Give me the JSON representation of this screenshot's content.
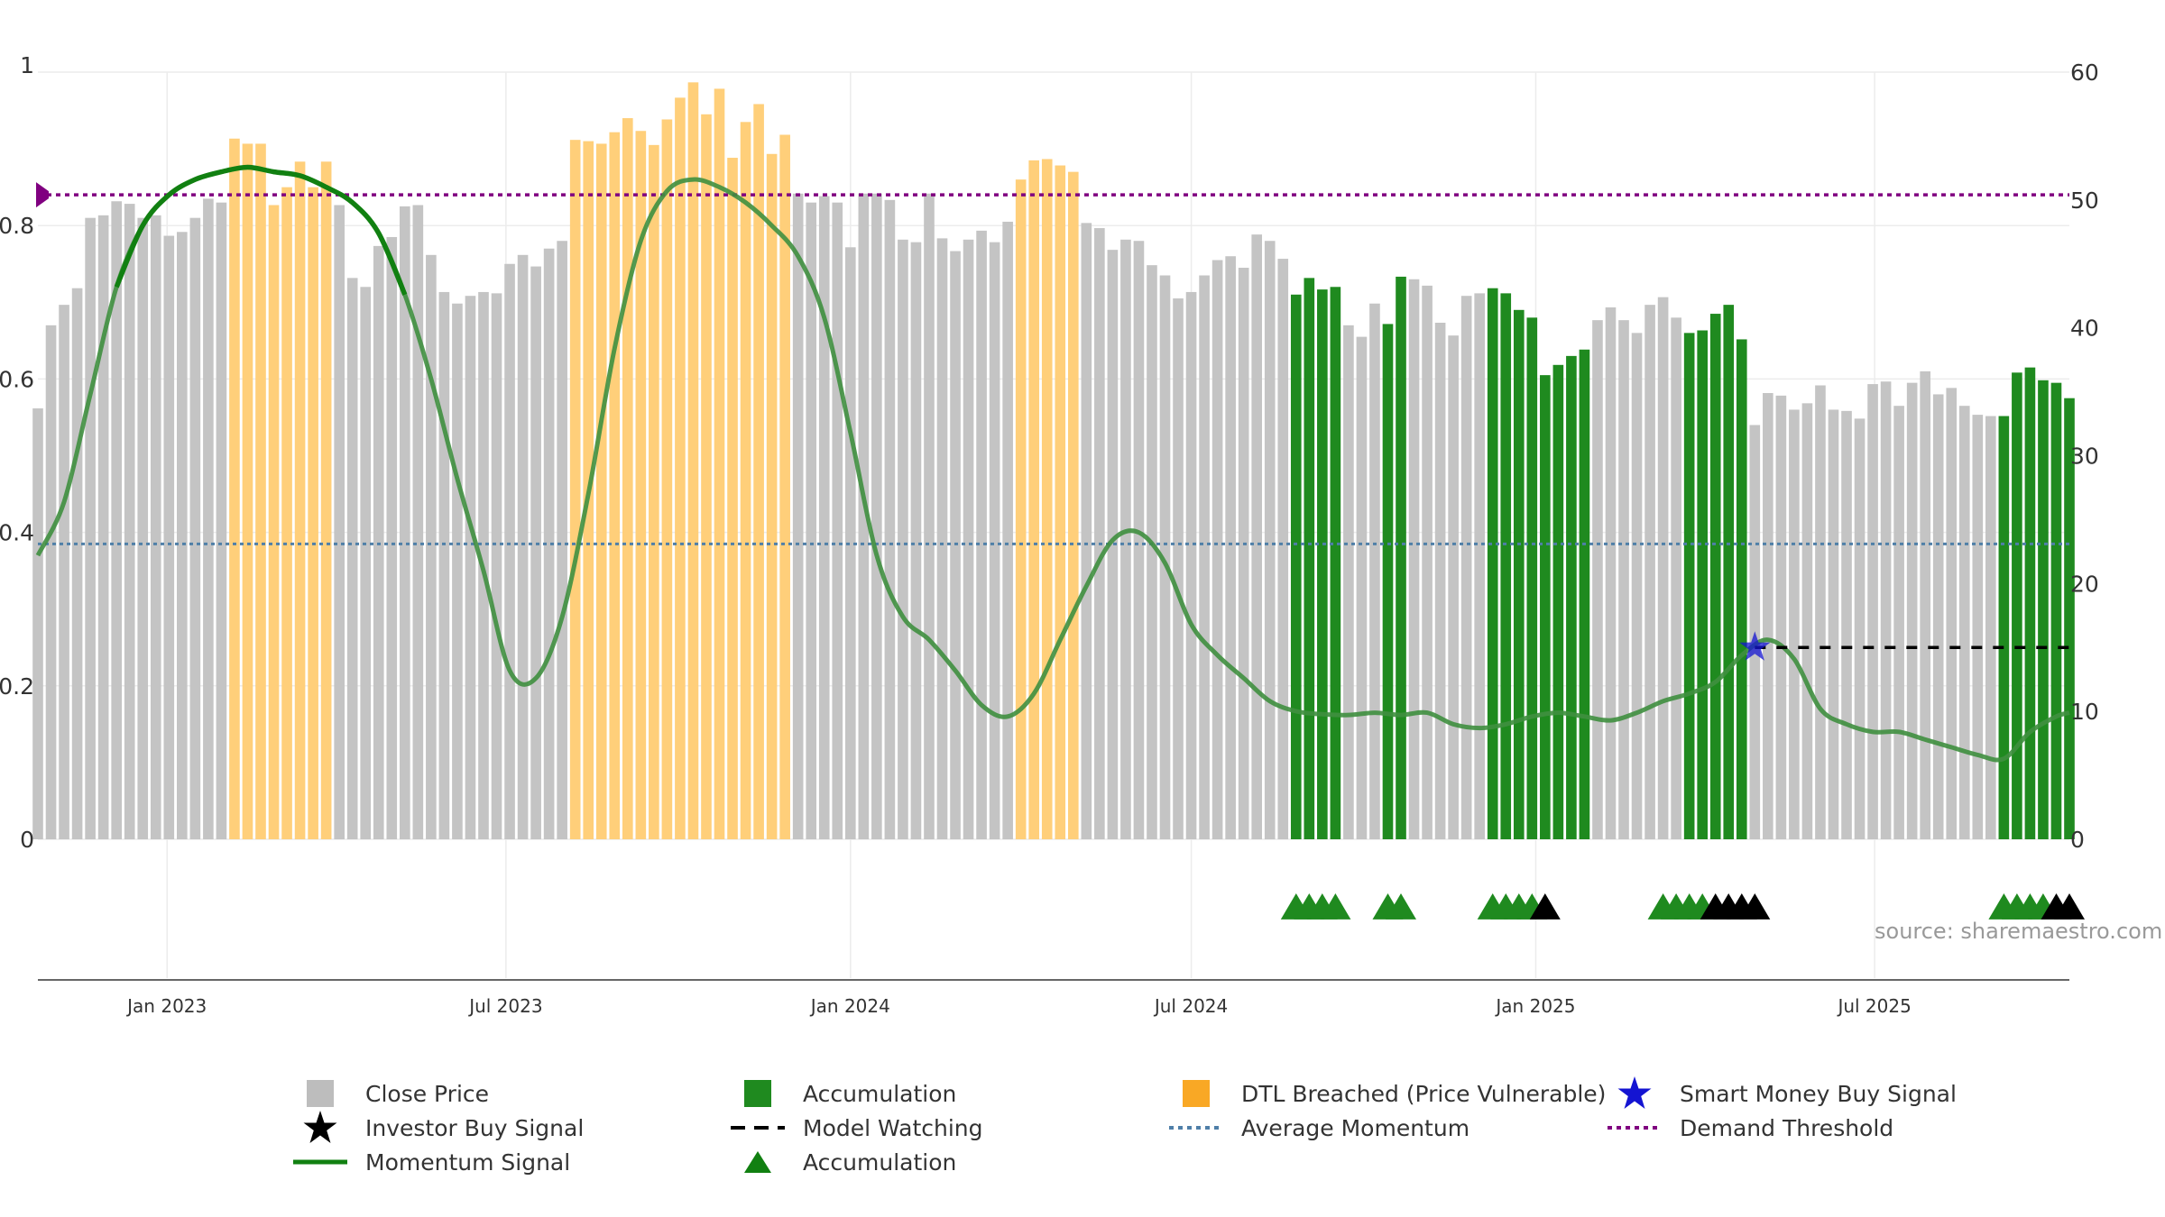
{
  "source_text": "source: sharemaestro.com",
  "colors": {
    "close_price": "#c4c4c4",
    "accumulation": "#1f8a1f",
    "dtl_breached": "#ffcf7a",
    "momentum": "#3f8f3f",
    "momentum_strong": "#118011",
    "average_momentum": "#4f7fa8",
    "demand_threshold": "#800080",
    "smart_money": "#1414d2",
    "investor_buy": "#000000",
    "model_watching": "#000000",
    "grid": "#ececec"
  },
  "legend": [
    {
      "label": "Close Price",
      "icon": "gray-square-icon",
      "color": "#bdbdbd"
    },
    {
      "label": "Accumulation",
      "icon": "green-square-icon",
      "color": "#1f8a1f"
    },
    {
      "label": "DTL Breached (Price Vulnerable)",
      "icon": "orange-square-icon",
      "color": "#f9a825"
    },
    {
      "label": "Smart Money Buy Signal",
      "icon": "blue-star-icon",
      "color": "#1414d2"
    },
    {
      "label": "Investor Buy Signal",
      "icon": "black-star-icon",
      "color": "#000000"
    },
    {
      "label": "Model Watching",
      "icon": "dashed-line-icon",
      "color": "#000000"
    },
    {
      "label": "Average Momentum",
      "icon": "blue-dotted-line-icon",
      "color": "#4f7fa8"
    },
    {
      "label": "Demand Threshold",
      "icon": "purple-dotted-line-icon",
      "color": "#800080"
    },
    {
      "label": "Momentum Signal",
      "icon": "green-line-icon",
      "color": "#118011"
    },
    {
      "label": "Accumulation",
      "icon": "green-triangle-icon",
      "color": "#118011"
    }
  ],
  "chart_data": {
    "type": "bar",
    "x_start": "2022-10-24",
    "x_end": "2025-10-13",
    "x_ticks": [
      {
        "label": "Jan 2023",
        "date": "2023-01-01"
      },
      {
        "label": "Jul 2023",
        "date": "2023-07-01"
      },
      {
        "label": "Jan 2024",
        "date": "2024-01-01"
      },
      {
        "label": "Jul 2024",
        "date": "2024-07-01"
      },
      {
        "label": "Jan 2025",
        "date": "2025-01-01"
      },
      {
        "label": "Jul 2025",
        "date": "2025-07-01"
      }
    ],
    "left_axis": {
      "ylim": [
        0,
        1
      ],
      "ticks": [
        "0",
        "0.2",
        "0.4",
        "0.6",
        "0.8",
        "1"
      ]
    },
    "right_axis": {
      "ylim": [
        0,
        60
      ],
      "ticks": [
        "0",
        "10",
        "20",
        "30",
        "40",
        "50",
        "60"
      ]
    },
    "close_price": [
      {
        "x": "2022-10-24",
        "y": 33.7
      },
      {
        "x": "2022-10-31",
        "y": 40.2
      },
      {
        "x": "2022-11-07",
        "y": 41.8
      },
      {
        "x": "2022-11-14",
        "y": 43.1
      },
      {
        "x": "2022-11-21",
        "y": 48.6
      },
      {
        "x": "2022-11-28",
        "y": 48.8
      },
      {
        "x": "2022-12-05",
        "y": 49.9
      },
      {
        "x": "2022-12-12",
        "y": 49.7
      },
      {
        "x": "2022-12-19",
        "y": 48.6
      },
      {
        "x": "2022-12-26",
        "y": 48.8
      },
      {
        "x": "2023-01-02",
        "y": 47.2
      },
      {
        "x": "2023-01-09",
        "y": 47.5
      },
      {
        "x": "2023-01-16",
        "y": 48.6
      },
      {
        "x": "2023-01-23",
        "y": 50.1
      },
      {
        "x": "2023-01-30",
        "y": 49.8
      },
      {
        "x": "2023-02-06",
        "y": 54.8
      },
      {
        "x": "2023-02-13",
        "y": 54.4
      },
      {
        "x": "2023-02-20",
        "y": 54.4
      },
      {
        "x": "2023-02-27",
        "y": 49.6
      },
      {
        "x": "2023-03-06",
        "y": 51.0
      },
      {
        "x": "2023-03-13",
        "y": 53.0
      },
      {
        "x": "2023-03-20",
        "y": 51.0
      },
      {
        "x": "2023-03-27",
        "y": 53.0
      },
      {
        "x": "2023-04-03",
        "y": 49.6
      },
      {
        "x": "2023-04-10",
        "y": 43.9
      },
      {
        "x": "2023-04-17",
        "y": 43.2
      },
      {
        "x": "2023-04-24",
        "y": 46.4
      },
      {
        "x": "2023-05-01",
        "y": 47.1
      },
      {
        "x": "2023-05-08",
        "y": 49.5
      },
      {
        "x": "2023-05-15",
        "y": 49.6
      },
      {
        "x": "2023-05-22",
        "y": 45.7
      },
      {
        "x": "2023-05-29",
        "y": 42.8
      },
      {
        "x": "2023-06-05",
        "y": 41.9
      },
      {
        "x": "2023-06-12",
        "y": 42.5
      },
      {
        "x": "2023-06-19",
        "y": 42.8
      },
      {
        "x": "2023-06-26",
        "y": 42.7
      },
      {
        "x": "2023-07-03",
        "y": 45.0
      },
      {
        "x": "2023-07-10",
        "y": 45.7
      },
      {
        "x": "2023-07-17",
        "y": 44.8
      },
      {
        "x": "2023-07-24",
        "y": 46.2
      },
      {
        "x": "2023-07-31",
        "y": 46.8
      },
      {
        "x": "2023-08-07",
        "y": 54.7
      },
      {
        "x": "2023-08-14",
        "y": 54.6
      },
      {
        "x": "2023-08-21",
        "y": 54.4
      },
      {
        "x": "2023-08-28",
        "y": 55.3
      },
      {
        "x": "2023-09-04",
        "y": 56.4
      },
      {
        "x": "2023-09-11",
        "y": 55.4
      },
      {
        "x": "2023-09-18",
        "y": 54.3
      },
      {
        "x": "2023-09-25",
        "y": 56.3
      },
      {
        "x": "2023-10-02",
        "y": 58.0
      },
      {
        "x": "2023-10-09",
        "y": 59.2
      },
      {
        "x": "2023-10-16",
        "y": 56.7
      },
      {
        "x": "2023-10-23",
        "y": 58.7
      },
      {
        "x": "2023-10-30",
        "y": 53.3
      },
      {
        "x": "2023-11-06",
        "y": 56.1
      },
      {
        "x": "2023-11-13",
        "y": 57.5
      },
      {
        "x": "2023-11-20",
        "y": 53.6
      },
      {
        "x": "2023-11-27",
        "y": 55.1
      },
      {
        "x": "2023-12-04",
        "y": 50.5
      },
      {
        "x": "2023-12-11",
        "y": 49.8
      },
      {
        "x": "2023-12-18",
        "y": 50.3
      },
      {
        "x": "2023-12-25",
        "y": 49.8
      },
      {
        "x": "2024-01-01",
        "y": 46.3
      },
      {
        "x": "2024-01-08",
        "y": 50.5
      },
      {
        "x": "2024-01-15",
        "y": 50.5
      },
      {
        "x": "2024-01-22",
        "y": 50.0
      },
      {
        "x": "2024-01-29",
        "y": 46.9
      },
      {
        "x": "2024-02-05",
        "y": 46.7
      },
      {
        "x": "2024-02-12",
        "y": 50.5
      },
      {
        "x": "2024-02-19",
        "y": 47.0
      },
      {
        "x": "2024-02-26",
        "y": 46.0
      },
      {
        "x": "2024-03-04",
        "y": 46.9
      },
      {
        "x": "2024-03-11",
        "y": 47.6
      },
      {
        "x": "2024-03-18",
        "y": 46.7
      },
      {
        "x": "2024-03-25",
        "y": 48.3
      },
      {
        "x": "2024-04-01",
        "y": 51.6
      },
      {
        "x": "2024-04-08",
        "y": 53.1
      },
      {
        "x": "2024-04-15",
        "y": 53.2
      },
      {
        "x": "2024-04-22",
        "y": 52.7
      },
      {
        "x": "2024-04-29",
        "y": 52.2
      },
      {
        "x": "2024-05-06",
        "y": 48.2
      },
      {
        "x": "2024-05-13",
        "y": 47.8
      },
      {
        "x": "2024-05-20",
        "y": 46.1
      },
      {
        "x": "2024-05-27",
        "y": 46.9
      },
      {
        "x": "2024-06-03",
        "y": 46.8
      },
      {
        "x": "2024-06-10",
        "y": 44.9
      },
      {
        "x": "2024-06-17",
        "y": 44.1
      },
      {
        "x": "2024-06-24",
        "y": 42.3
      },
      {
        "x": "2024-07-01",
        "y": 42.8
      },
      {
        "x": "2024-07-08",
        "y": 44.1
      },
      {
        "x": "2024-07-15",
        "y": 45.3
      },
      {
        "x": "2024-07-22",
        "y": 45.6
      },
      {
        "x": "2024-07-29",
        "y": 44.7
      },
      {
        "x": "2024-08-05",
        "y": 47.3
      },
      {
        "x": "2024-08-12",
        "y": 46.8
      },
      {
        "x": "2024-08-19",
        "y": 45.4
      },
      {
        "x": "2024-08-26",
        "y": 42.6
      },
      {
        "x": "2024-09-02",
        "y": 43.9
      },
      {
        "x": "2024-09-09",
        "y": 43.0
      },
      {
        "x": "2024-09-16",
        "y": 43.2
      },
      {
        "x": "2024-09-23",
        "y": 40.2
      },
      {
        "x": "2024-09-30",
        "y": 39.3
      },
      {
        "x": "2024-10-07",
        "y": 41.9
      },
      {
        "x": "2024-10-14",
        "y": 40.3
      },
      {
        "x": "2024-10-21",
        "y": 44.0
      },
      {
        "x": "2024-10-28",
        "y": 43.8
      },
      {
        "x": "2024-11-04",
        "y": 43.3
      },
      {
        "x": "2024-11-11",
        "y": 40.4
      },
      {
        "x": "2024-11-18",
        "y": 39.4
      },
      {
        "x": "2024-11-25",
        "y": 42.5
      },
      {
        "x": "2024-12-02",
        "y": 42.7
      },
      {
        "x": "2024-12-09",
        "y": 43.1
      },
      {
        "x": "2024-12-16",
        "y": 42.7
      },
      {
        "x": "2024-12-23",
        "y": 41.4
      },
      {
        "x": "2024-12-30",
        "y": 40.8
      },
      {
        "x": "2025-01-06",
        "y": 36.3
      },
      {
        "x": "2025-01-13",
        "y": 37.1
      },
      {
        "x": "2025-01-20",
        "y": 37.8
      },
      {
        "x": "2025-01-27",
        "y": 38.3
      },
      {
        "x": "2025-02-03",
        "y": 40.6
      },
      {
        "x": "2025-02-10",
        "y": 41.6
      },
      {
        "x": "2025-02-17",
        "y": 40.6
      },
      {
        "x": "2025-02-24",
        "y": 39.6
      },
      {
        "x": "2025-03-03",
        "y": 41.8
      },
      {
        "x": "2025-03-10",
        "y": 42.4
      },
      {
        "x": "2025-03-17",
        "y": 40.8
      },
      {
        "x": "2025-03-24",
        "y": 39.6
      },
      {
        "x": "2025-03-31",
        "y": 39.8
      },
      {
        "x": "2025-04-07",
        "y": 41.1
      },
      {
        "x": "2025-04-14",
        "y": 41.8
      },
      {
        "x": "2025-04-21",
        "y": 39.1
      },
      {
        "x": "2025-04-28",
        "y": 32.4
      },
      {
        "x": "2025-05-05",
        "y": 34.9
      },
      {
        "x": "2025-05-12",
        "y": 34.7
      },
      {
        "x": "2025-05-19",
        "y": 33.6
      },
      {
        "x": "2025-05-26",
        "y": 34.1
      },
      {
        "x": "2025-06-02",
        "y": 35.5
      },
      {
        "x": "2025-06-09",
        "y": 33.6
      },
      {
        "x": "2025-06-16",
        "y": 33.5
      },
      {
        "x": "2025-06-23",
        "y": 32.9
      },
      {
        "x": "2025-06-30",
        "y": 35.6
      },
      {
        "x": "2025-07-07",
        "y": 35.8
      },
      {
        "x": "2025-07-14",
        "y": 33.9
      },
      {
        "x": "2025-07-21",
        "y": 35.7
      },
      {
        "x": "2025-07-28",
        "y": 36.6
      },
      {
        "x": "2025-08-04",
        "y": 34.8
      },
      {
        "x": "2025-08-11",
        "y": 35.3
      },
      {
        "x": "2025-08-18",
        "y": 33.9
      },
      {
        "x": "2025-08-25",
        "y": 33.2
      },
      {
        "x": "2025-09-01",
        "y": 33.1
      },
      {
        "x": "2025-09-08",
        "y": 33.1
      },
      {
        "x": "2025-09-15",
        "y": 36.5
      },
      {
        "x": "2025-09-22",
        "y": 36.9
      },
      {
        "x": "2025-09-29",
        "y": 35.9
      },
      {
        "x": "2025-10-06",
        "y": 35.7
      },
      {
        "x": "2025-10-13",
        "y": 34.5
      }
    ],
    "dtl_breached_ranges": [
      [
        "2023-02-06",
        "2023-03-27"
      ],
      [
        "2023-08-07",
        "2023-11-27"
      ],
      [
        "2024-04-01",
        "2024-04-29"
      ]
    ],
    "accumulation_ranges": [
      [
        "2024-08-26",
        "2024-09-16"
      ],
      [
        "2024-10-14",
        "2024-10-21"
      ],
      [
        "2024-12-09",
        "2025-01-27"
      ],
      [
        "2025-03-24",
        "2025-04-21"
      ],
      [
        "2025-09-08",
        "2025-10-13"
      ]
    ],
    "momentum": [
      {
        "x": "2022-10-24",
        "y": 0.37
      },
      {
        "x": "2022-11-07",
        "y": 0.44
      },
      {
        "x": "2022-11-21",
        "y": 0.58
      },
      {
        "x": "2022-12-05",
        "y": 0.72
      },
      {
        "x": "2022-12-19",
        "y": 0.8
      },
      {
        "x": "2023-01-02",
        "y": 0.84
      },
      {
        "x": "2023-01-16",
        "y": 0.86
      },
      {
        "x": "2023-01-30",
        "y": 0.87
      },
      {
        "x": "2023-02-13",
        "y": 0.876
      },
      {
        "x": "2023-02-27",
        "y": 0.87
      },
      {
        "x": "2023-03-13",
        "y": 0.865
      },
      {
        "x": "2023-03-27",
        "y": 0.85
      },
      {
        "x": "2023-04-10",
        "y": 0.83
      },
      {
        "x": "2023-04-24",
        "y": 0.79
      },
      {
        "x": "2023-05-08",
        "y": 0.71
      },
      {
        "x": "2023-05-22",
        "y": 0.6
      },
      {
        "x": "2023-06-05",
        "y": 0.47
      },
      {
        "x": "2023-06-19",
        "y": 0.35
      },
      {
        "x": "2023-07-03",
        "y": 0.22
      },
      {
        "x": "2023-07-17",
        "y": 0.21
      },
      {
        "x": "2023-07-31",
        "y": 0.29
      },
      {
        "x": "2023-08-14",
        "y": 0.45
      },
      {
        "x": "2023-08-28",
        "y": 0.64
      },
      {
        "x": "2023-09-11",
        "y": 0.78
      },
      {
        "x": "2023-09-25",
        "y": 0.845
      },
      {
        "x": "2023-10-09",
        "y": 0.86
      },
      {
        "x": "2023-10-23",
        "y": 0.85
      },
      {
        "x": "2023-11-06",
        "y": 0.83
      },
      {
        "x": "2023-11-20",
        "y": 0.8
      },
      {
        "x": "2023-12-04",
        "y": 0.76
      },
      {
        "x": "2023-12-18",
        "y": 0.68
      },
      {
        "x": "2024-01-01",
        "y": 0.53
      },
      {
        "x": "2024-01-15",
        "y": 0.37
      },
      {
        "x": "2024-01-29",
        "y": 0.29
      },
      {
        "x": "2024-02-12",
        "y": 0.26
      },
      {
        "x": "2024-02-26",
        "y": 0.22
      },
      {
        "x": "2024-03-11",
        "y": 0.175
      },
      {
        "x": "2024-03-25",
        "y": 0.16
      },
      {
        "x": "2024-04-08",
        "y": 0.19
      },
      {
        "x": "2024-04-22",
        "y": 0.26
      },
      {
        "x": "2024-05-06",
        "y": 0.33
      },
      {
        "x": "2024-05-20",
        "y": 0.39
      },
      {
        "x": "2024-06-03",
        "y": 0.4
      },
      {
        "x": "2024-06-17",
        "y": 0.36
      },
      {
        "x": "2024-07-01",
        "y": 0.28
      },
      {
        "x": "2024-07-15",
        "y": 0.24
      },
      {
        "x": "2024-07-29",
        "y": 0.21
      },
      {
        "x": "2024-08-12",
        "y": 0.18
      },
      {
        "x": "2024-08-26",
        "y": 0.167
      },
      {
        "x": "2024-09-09",
        "y": 0.163
      },
      {
        "x": "2024-09-23",
        "y": 0.162
      },
      {
        "x": "2024-10-07",
        "y": 0.165
      },
      {
        "x": "2024-10-21",
        "y": 0.162
      },
      {
        "x": "2024-11-04",
        "y": 0.165
      },
      {
        "x": "2024-11-18",
        "y": 0.15
      },
      {
        "x": "2024-12-02",
        "y": 0.145
      },
      {
        "x": "2024-12-16",
        "y": 0.15
      },
      {
        "x": "2024-12-30",
        "y": 0.16
      },
      {
        "x": "2025-01-13",
        "y": 0.165
      },
      {
        "x": "2025-01-27",
        "y": 0.16
      },
      {
        "x": "2025-02-10",
        "y": 0.155
      },
      {
        "x": "2025-02-24",
        "y": 0.165
      },
      {
        "x": "2025-03-10",
        "y": 0.18
      },
      {
        "x": "2025-03-24",
        "y": 0.19
      },
      {
        "x": "2025-04-07",
        "y": 0.205
      },
      {
        "x": "2025-04-21",
        "y": 0.24
      },
      {
        "x": "2025-05-05",
        "y": 0.26
      },
      {
        "x": "2025-05-19",
        "y": 0.235
      },
      {
        "x": "2025-06-02",
        "y": 0.17
      },
      {
        "x": "2025-06-16",
        "y": 0.15
      },
      {
        "x": "2025-06-30",
        "y": 0.14
      },
      {
        "x": "2025-07-14",
        "y": 0.14
      },
      {
        "x": "2025-07-28",
        "y": 0.13
      },
      {
        "x": "2025-08-11",
        "y": 0.12
      },
      {
        "x": "2025-08-25",
        "y": 0.11
      },
      {
        "x": "2025-09-08",
        "y": 0.105
      },
      {
        "x": "2025-09-22",
        "y": 0.14
      },
      {
        "x": "2025-10-06",
        "y": 0.16
      },
      {
        "x": "2025-10-13",
        "y": 0.165
      }
    ],
    "momentum_strong_ranges": [
      [
        "2022-12-05",
        "2023-05-08"
      ]
    ],
    "average_momentum": 0.385,
    "demand_threshold": 0.84,
    "smart_money_signal": {
      "x": "2025-04-28",
      "y": 0.25
    },
    "model_watching": {
      "x_start": "2025-04-28",
      "x_end": "2025-10-13",
      "y": 0.25
    },
    "accumulation_triangles": [
      "2024-08-26",
      "2024-09-02",
      "2024-09-09",
      "2024-09-16",
      "2024-10-14",
      "2024-10-21",
      "2024-12-09",
      "2024-12-16",
      "2024-12-23",
      "2024-12-30",
      "2025-03-10",
      "2025-03-17",
      "2025-03-24",
      "2025-03-31",
      "2025-09-08",
      "2025-09-15",
      "2025-09-22",
      "2025-09-29"
    ],
    "investor_buy_triangles": [
      "2025-01-06",
      "2025-04-07",
      "2025-04-14",
      "2025-04-21",
      "2025-04-28",
      "2025-10-06",
      "2025-10-13"
    ],
    "grid": true
  }
}
